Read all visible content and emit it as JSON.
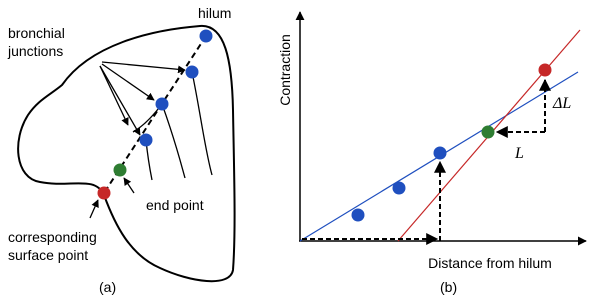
{
  "panel_a": {
    "hilum": "hilum",
    "bronchial_junctions": [
      "bronchial",
      "junctions"
    ],
    "end_point": "end point",
    "surface_point": [
      "corresponding",
      "surface point"
    ],
    "caption": "(a)"
  },
  "panel_b": {
    "y_axis_label": "Contraction",
    "x_axis_label": "Distance from hilum",
    "l_label": "L",
    "delta_l_label": "ΔL",
    "caption": "(b)"
  }
}
